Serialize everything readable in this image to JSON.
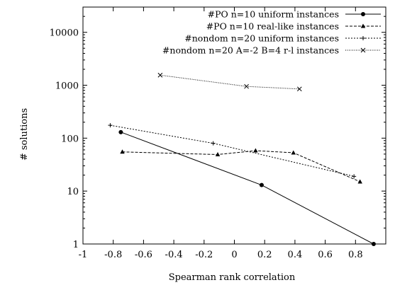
{
  "chart_data": {
    "type": "line",
    "title": "",
    "xlabel": "Spearman rank correlation",
    "ylabel": "# solutions",
    "xlim": [
      -1,
      1
    ],
    "ylim": [
      1,
      30000
    ],
    "yscale": "log",
    "x_ticks": [
      -1,
      -0.8,
      -0.6,
      -0.4,
      -0.2,
      0,
      0.2,
      0.4,
      0.6,
      0.8
    ],
    "x_tick_labels": [
      "-1",
      "-0.8",
      "-0.6",
      "-0.4",
      "-0.2",
      "0",
      "0.2",
      "0.4",
      "0.6",
      "0.8"
    ],
    "y_ticks": [
      1,
      10,
      100,
      1000,
      10000
    ],
    "y_tick_labels": [
      "1",
      "10",
      "100",
      "1000",
      "10000"
    ],
    "grid": false,
    "legend_position": "top-right",
    "series": [
      {
        "name": "#PO n=10 uniform instances",
        "marker": "filled-circle",
        "dash": "solid",
        "x": [
          -0.75,
          0.18,
          0.92
        ],
        "y": [
          130,
          13,
          1
        ]
      },
      {
        "name": "#PO n=10 real-like instances",
        "marker": "filled-triangle",
        "dash": "dashed",
        "x": [
          -0.74,
          -0.11,
          0.14,
          0.39,
          0.83
        ],
        "y": [
          55,
          49,
          58,
          53,
          15
        ]
      },
      {
        "name": "#nondom n=20 uniform instances",
        "marker": "plus",
        "dash": "dotted",
        "x": [
          -0.82,
          -0.14,
          0.79
        ],
        "y": [
          175,
          80,
          19
        ]
      },
      {
        "name": "#nondom n=20 A=-2 B=4 r-l instances",
        "marker": "cross",
        "dash": "fine-dotted",
        "x": [
          -0.49,
          0.08,
          0.43
        ],
        "y": [
          1550,
          950,
          850
        ]
      }
    ]
  }
}
